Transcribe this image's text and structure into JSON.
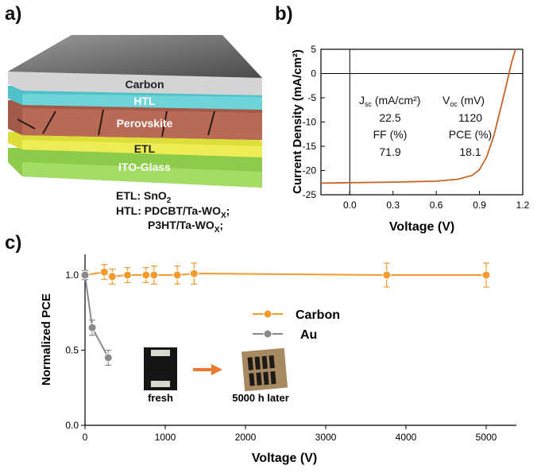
{
  "panels": {
    "a": "a)",
    "b": "b)",
    "c": "c)"
  },
  "stack": {
    "layers": [
      "Carbon",
      "HTL",
      "Perovskite",
      "ETL",
      "ITO-Glass"
    ],
    "notes": {
      "etl_label": "ETL:",
      "etl_material": "SnO",
      "etl_sub": "2",
      "htl_label": "HTL:",
      "htl_line1": "PDCBT/Ta-WO",
      "htl_line1_sub": "X",
      "htl_line1_end": ";",
      "htl_line2": "P3HT/Ta-WO",
      "htl_line2_sub": "X",
      "htl_line2_end": ";"
    }
  },
  "chart_data": [
    {
      "type": "line",
      "panel": "b",
      "xlabel": "Voltage (V)",
      "ylabel": "Current Density (mA/cm²)",
      "xlim": [
        -0.2,
        1.2
      ],
      "ylim": [
        -25,
        5
      ],
      "xticks": [
        "0.0",
        "0.3",
        "0.6",
        "0.9",
        "1.2"
      ],
      "yticks": [
        "5",
        "0",
        "-5",
        "-10",
        "-15",
        "-20",
        "-25"
      ],
      "series": [
        {
          "color": "#c8642a",
          "x": [
            -0.2,
            0.0,
            0.3,
            0.6,
            0.75,
            0.85,
            0.9,
            0.95,
            1.0,
            1.05,
            1.08,
            1.1,
            1.12,
            1.15
          ],
          "y": [
            -22.6,
            -22.5,
            -22.4,
            -22.2,
            -21.8,
            -21.0,
            -19.8,
            -17.2,
            -12.8,
            -6.8,
            -3.2,
            -0.6,
            2.0,
            5.0
          ]
        }
      ],
      "table": {
        "headers": [
          "J",
          "sc",
          " (mA/cm²)",
          "V",
          "oc",
          " (mV)"
        ],
        "rows": [
          [
            "22.5",
            "1120"
          ],
          [
            "FF (%)",
            "PCE (%)"
          ],
          [
            "71.9",
            "18.1"
          ]
        ]
      }
    },
    {
      "type": "line",
      "panel": "c",
      "xlabel": "Voltage (V)",
      "ylabel": "Normalized PCE",
      "xlim": [
        0,
        5100
      ],
      "ylim": [
        0,
        1.1
      ],
      "xticks": [
        "0",
        "1000",
        "2000",
        "3000",
        "4000",
        "5000"
      ],
      "yticks": [
        "0.0",
        "0.5",
        "1.0"
      ],
      "series": [
        {
          "name": "Carbon",
          "color": "#f29a2e",
          "x": [
            0,
            240,
            340,
            530,
            760,
            860,
            1150,
            1360,
            3760,
            5000
          ],
          "y": [
            1.0,
            1.02,
            0.99,
            1.0,
            1.0,
            1.0,
            1.0,
            1.01,
            1.0,
            1.0
          ],
          "err": [
            0.03,
            0.05,
            0.05,
            0.05,
            0.05,
            0.06,
            0.06,
            0.07,
            0.08,
            0.08
          ]
        },
        {
          "name": "Au",
          "color": "#8a8a8a",
          "x": [
            0,
            90,
            290
          ],
          "y": [
            1.0,
            0.65,
            0.45
          ],
          "err": [
            0.03,
            0.05,
            0.05
          ]
        }
      ],
      "legend": "center",
      "inset": {
        "caption_fresh": "fresh",
        "caption_later": "5000 h later"
      }
    }
  ]
}
